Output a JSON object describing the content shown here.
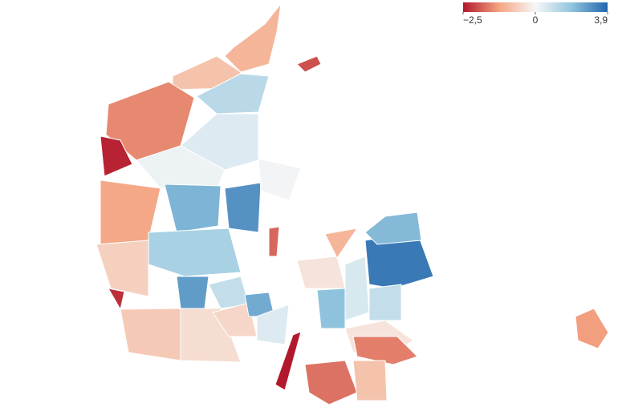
{
  "legend": {
    "ticks": [
      {
        "value": -2.5,
        "label": "−2,5"
      },
      0,
      {
        "value": 3.9,
        "label": "3,9"
      }
    ],
    "colors": [
      "#b2182b",
      "#f4a582",
      "#f7f7f7",
      "#92c5de",
      "#2166ac"
    ]
  },
  "regions": {
    "values": [
      -1.0,
      -0.8,
      1.2,
      -1.5,
      -2.4,
      0.5,
      0.2,
      -1.2,
      2.3,
      3.0,
      0.1,
      1.5,
      -0.6,
      -2.3,
      2.8,
      1.0,
      -0.7,
      -0.4,
      -0.5,
      2.5,
      0.5,
      -2.5,
      -0.3,
      2.0,
      0.6,
      3.5,
      2.2,
      -1.0,
      1.0,
      -0.3,
      -1.6,
      -1.7,
      -0.8,
      -1.3,
      -2.0,
      -1.8
    ]
  }
}
